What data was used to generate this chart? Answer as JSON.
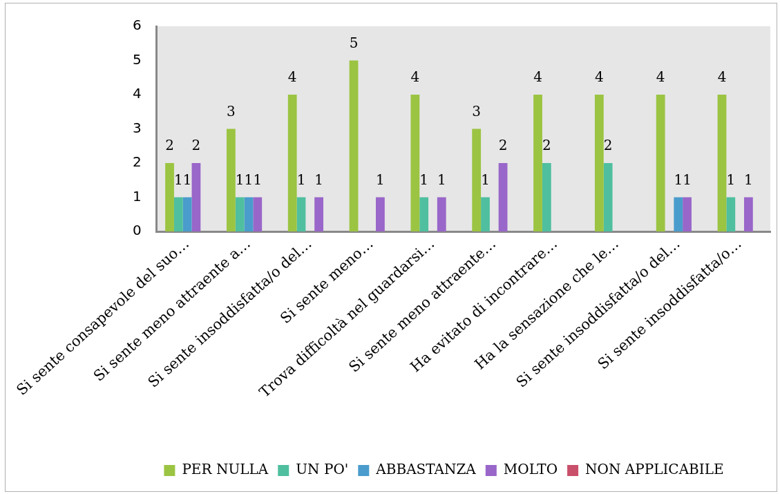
{
  "chart_data": {
    "type": "bar",
    "categories": [
      "Si sente consapevole del suo…",
      "Si sente meno attraente a…",
      "Si sente insoddisfatta/o del…",
      "Si sente meno…",
      "Trova difficoltà nel guardarsi…",
      "Si sente meno attraente…",
      "Ha evitato di incontrare…",
      "Ha la sensazione che le…",
      "Si sente insoddisfatta/o del…",
      "Si sente insoddisfatta/o…"
    ],
    "series": [
      {
        "name": "PER NULLA",
        "color": "#9bc442",
        "values": [
          2,
          3,
          4,
          5,
          4,
          3,
          4,
          4,
          4,
          4
        ]
      },
      {
        "name": "UN PO'",
        "color": "#4fbf9f",
        "values": [
          1,
          1,
          1,
          null,
          1,
          1,
          2,
          2,
          null,
          1
        ]
      },
      {
        "name": "ABBASTANZA",
        "color": "#4a9ccc",
        "values": [
          1,
          1,
          null,
          null,
          null,
          null,
          null,
          null,
          1,
          null
        ]
      },
      {
        "name": "MOLTO",
        "color": "#9966c9",
        "values": [
          2,
          1,
          1,
          1,
          1,
          2,
          null,
          null,
          1,
          1
        ]
      },
      {
        "name": "NON APPLICABILE",
        "color": "#c9506a",
        "values": [
          null,
          null,
          null,
          null,
          null,
          null,
          null,
          null,
          null,
          null
        ]
      }
    ],
    "ylim": [
      0,
      6
    ],
    "yticks": [
      0,
      1,
      2,
      3,
      4,
      5,
      6
    ],
    "grid": false,
    "legend": "bottom",
    "data_labels": true
  }
}
